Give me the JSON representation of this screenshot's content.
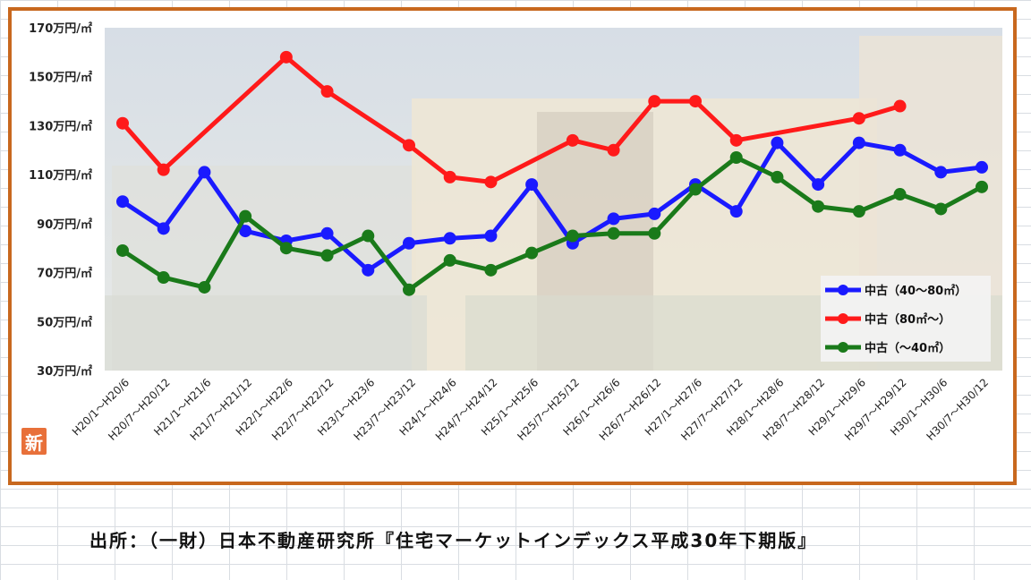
{
  "source_text": "出所：（一財）日本不動産研究所『住宅マーケットインデックス平成30年下期版』",
  "badge_text": "新",
  "chart_data": {
    "type": "line",
    "title": "",
    "xlabel": "",
    "ylabel": "",
    "ylim": [
      30,
      170
    ],
    "yticks": [
      {
        "value": 170,
        "label": "170万円/㎡"
      },
      {
        "value": 150,
        "label": "150万円/㎡"
      },
      {
        "value": 130,
        "label": "130万円/㎡"
      },
      {
        "value": 110,
        "label": "110万円/㎡"
      },
      {
        "value": 90,
        "label": "90万円/㎡"
      },
      {
        "value": 70,
        "label": "70万円/㎡"
      },
      {
        "value": 50,
        "label": "50万円/㎡"
      },
      {
        "value": 30,
        "label": "30万円/㎡"
      }
    ],
    "categories": [
      "H20/1～H20/6",
      "H20/7～H20/12",
      "H21/1～H21/6",
      "H21/7～H21/12",
      "H22/1～H22/6",
      "H22/7～H22/12",
      "H23/1～H23/6",
      "H23/7～H23/12",
      "H24/1～H24/6",
      "H24/7～H24/12",
      "H25/1～H25/6",
      "H25/7～H25/12",
      "H26/1～H26/6",
      "H26/7～H26/12",
      "H27/1～H27/6",
      "H27/7～H27/12",
      "H28/1～H28/6",
      "H28/7～H28/12",
      "H29/1～H29/6",
      "H29/7～H29/12",
      "H30/1～H30/6",
      "H30/7～H30/12"
    ],
    "legend_position": "bottom-right",
    "series": [
      {
        "name": "中古（40～80㎡）",
        "color": "#1a1aff",
        "values": [
          99,
          88,
          111,
          87,
          83,
          86,
          71,
          82,
          84,
          85,
          106,
          82,
          92,
          94,
          106,
          95,
          123,
          106,
          123,
          120,
          111,
          113
        ]
      },
      {
        "name": "中古（80㎡～）",
        "color": "#ff1a1a",
        "values": [
          131,
          112,
          null,
          null,
          158,
          144,
          null,
          122,
          109,
          107,
          null,
          124,
          120,
          140,
          140,
          124,
          null,
          null,
          133,
          138,
          null,
          null
        ]
      },
      {
        "name": "中古（～40㎡）",
        "color": "#1a7a1a",
        "values": [
          79,
          68,
          64,
          93,
          80,
          77,
          85,
          63,
          75,
          71,
          78,
          85,
          86,
          86,
          104,
          117,
          109,
          97,
          95,
          102,
          96,
          105
        ]
      }
    ]
  }
}
